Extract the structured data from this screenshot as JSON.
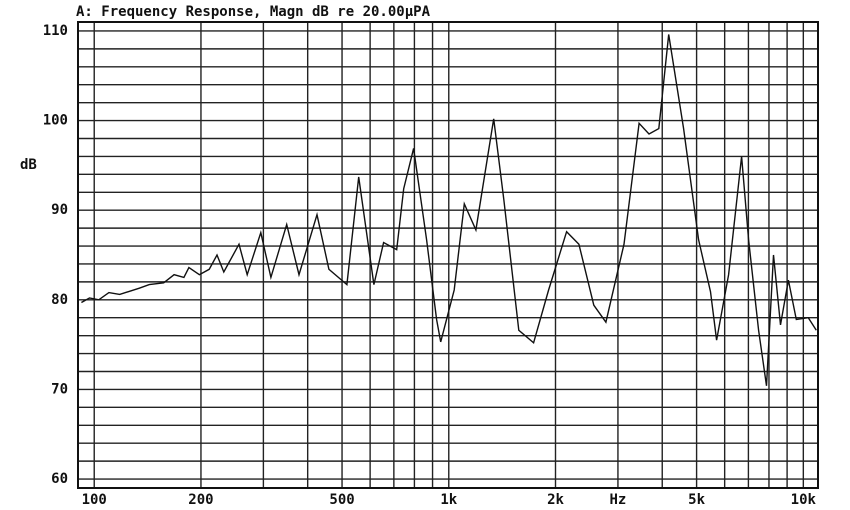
{
  "chart_data": {
    "type": "line",
    "title": "A: Frequency Response, Magn dB re 20.00µPA",
    "y_label": "dB",
    "x_scale": "log",
    "color": "#111111",
    "grid": true,
    "xlim": [
      90,
      11000
    ],
    "ylim": [
      59,
      111
    ],
    "xticks": [
      100,
      200,
      500,
      {
        "value": 1000,
        "label": "1k"
      },
      {
        "value": 2000,
        "label": "2k"
      },
      {
        "value": 3000,
        "label": "Hz"
      },
      {
        "value": 5000,
        "label": "5k"
      },
      {
        "value": 10000,
        "label": "10k"
      }
    ],
    "yticks": [
      60,
      70,
      80,
      90,
      100,
      110
    ],
    "xgrid": [
      100,
      200,
      300,
      400,
      500,
      600,
      700,
      800,
      900,
      1000,
      2000,
      3000,
      4000,
      5000,
      6000,
      7000,
      8000,
      9000,
      10000
    ],
    "ygrid": [
      60,
      62,
      64,
      66,
      68,
      70,
      72,
      74,
      76,
      78,
      80,
      82,
      84,
      86,
      88,
      90,
      92,
      94,
      96,
      98,
      100,
      102,
      104,
      106,
      108,
      110
    ],
    "x": [
      92,
      97,
      103,
      110,
      118,
      134,
      143,
      157,
      168,
      179,
      185,
      198,
      211,
      222,
      232,
      256,
      270,
      295,
      315,
      349,
      378,
      425,
      459,
      516,
      557,
      615,
      655,
      713,
      746,
      796,
      866,
      924,
      949,
      1036,
      1106,
      1193,
      1339,
      1430,
      1576,
      1735,
      1912,
      2150,
      2328,
      2564,
      2774,
      3120,
      3441,
      3670,
      3912,
      4172,
      4596,
      5064,
      5473,
      5693,
      6156,
      6697,
      7010,
      7478,
      7875,
      8240,
      8625,
      9075,
      9552,
      10326,
      10880
    ],
    "values": [
      79.7,
      80.2,
      80,
      80.8,
      80.6,
      81.3,
      81.7,
      81.9,
      82.8,
      82.5,
      83.6,
      82.8,
      83.4,
      85,
      83.1,
      86.2,
      82.8,
      87.5,
      82.5,
      88.4,
      82.8,
      89.5,
      83.4,
      81.7,
      93.7,
      81.7,
      86.4,
      85.6,
      92.4,
      96.9,
      86.7,
      77.8,
      75.3,
      81.1,
      90.7,
      87.8,
      100.2,
      91.2,
      76.6,
      75.2,
      81.1,
      87.6,
      86.2,
      79.4,
      77.5,
      86.2,
      99.7,
      98.5,
      99.1,
      109.6,
      99.1,
      86.7,
      80.9,
      75.5,
      82.8,
      96,
      86.7,
      76.6,
      70.4,
      85,
      77.2,
      82.2,
      77.8,
      78,
      76.6
    ]
  }
}
